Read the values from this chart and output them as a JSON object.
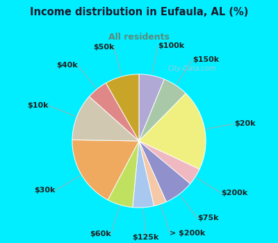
{
  "title": "Income distribution in Eufaula, AL (%)",
  "subtitle": "All residents",
  "title_color": "#1a1a2e",
  "subtitle_color": "#5a8a7a",
  "bg_cyan": "#00eeff",
  "bg_chart": "#e8f5ee",
  "watermark": "City-Data.com",
  "segments": [
    {
      "label": "$100k",
      "value": 6,
      "color": "#b0a8d5"
    },
    {
      "label": "$150k",
      "value": 6,
      "color": "#a8c8a8"
    },
    {
      "label": "$20k",
      "value": 19,
      "color": "#f0f080"
    },
    {
      "label": "$200k",
      "value": 4,
      "color": "#f0b8c0"
    },
    {
      "label": "$75k",
      "value": 7,
      "color": "#9090cc"
    },
    {
      "label": "> $200k",
      "value": 3,
      "color": "#f5c8a8"
    },
    {
      "label": "$125k",
      "value": 5,
      "color": "#a8c8f0"
    },
    {
      "label": "$60k",
      "value": 6,
      "color": "#c0e060"
    },
    {
      "label": "$30k",
      "value": 17,
      "color": "#f0aa60"
    },
    {
      "label": "$10k",
      "value": 11,
      "color": "#d0c8b0"
    },
    {
      "label": "$40k",
      "value": 5,
      "color": "#e08888"
    },
    {
      "label": "$50k",
      "value": 8,
      "color": "#c8a428"
    }
  ],
  "label_fontsize": 8,
  "figsize": [
    4.0,
    3.5
  ],
  "dpi": 100
}
